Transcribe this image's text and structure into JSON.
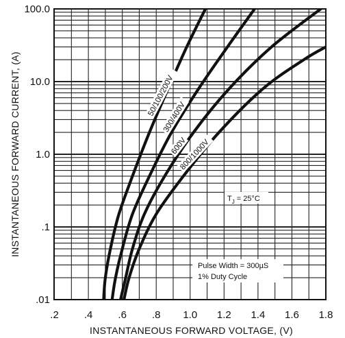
{
  "chart_data": {
    "type": "line",
    "xlabel": "INSTANTANEOUS FORWARD VOLTAGE, (V)",
    "ylabel": "INSTANTANEOUS FORWARD CURRENT, (A)",
    "x_scale": "linear",
    "y_scale": "log",
    "xlim": [
      0,
      1.8
    ],
    "ylim": [
      0.01,
      100
    ],
    "x_ticks": [
      0.2,
      0.4,
      0.6,
      0.8,
      1.0,
      1.2,
      1.4,
      1.6,
      1.8
    ],
    "x_tick_labels": [
      ".2",
      ".4",
      ".6",
      ".8",
      "1.0",
      "1.2",
      "1.4",
      "1.6",
      "1.8"
    ],
    "y_ticks": [
      0.01,
      0.1,
      1,
      10,
      100
    ],
    "y_tick_labels": [
      ".01",
      ".1",
      "1.0",
      "10.0",
      "100.0"
    ],
    "grid": true,
    "series": [
      {
        "name": "50/100/200V",
        "x": [
          0.49,
          0.5,
          0.53,
          0.58,
          0.66,
          0.76,
          0.87,
          0.98,
          1.09
        ],
        "y": [
          0.01,
          0.02,
          0.05,
          0.15,
          0.5,
          2,
          8,
          30,
          100
        ]
      },
      {
        "name": "300/400V",
        "x": [
          0.54,
          0.56,
          0.6,
          0.66,
          0.76,
          0.89,
          1.05,
          1.22,
          1.38
        ],
        "y": [
          0.01,
          0.02,
          0.05,
          0.15,
          0.5,
          2,
          8,
          30,
          100
        ]
      },
      {
        "name": "600V",
        "x": [
          0.59,
          0.62,
          0.66,
          0.73,
          0.85,
          1.02,
          1.23,
          1.48,
          1.77
        ],
        "y": [
          0.01,
          0.02,
          0.05,
          0.15,
          0.5,
          2,
          8,
          30,
          100
        ]
      },
      {
        "name": "800/1000V",
        "x": [
          0.61,
          0.64,
          0.7,
          0.8,
          0.96,
          1.17,
          1.43,
          1.67,
          1.8
        ],
        "y": [
          0.01,
          0.02,
          0.05,
          0.15,
          0.5,
          2,
          8,
          20,
          30
        ]
      }
    ],
    "annotations": {
      "temperature": "T",
      "temperature_sub": "J",
      "temperature_rest": " = 25°C",
      "pulse": "Pulse Width = 300µS",
      "duty": "1% Duty Cycle"
    }
  }
}
